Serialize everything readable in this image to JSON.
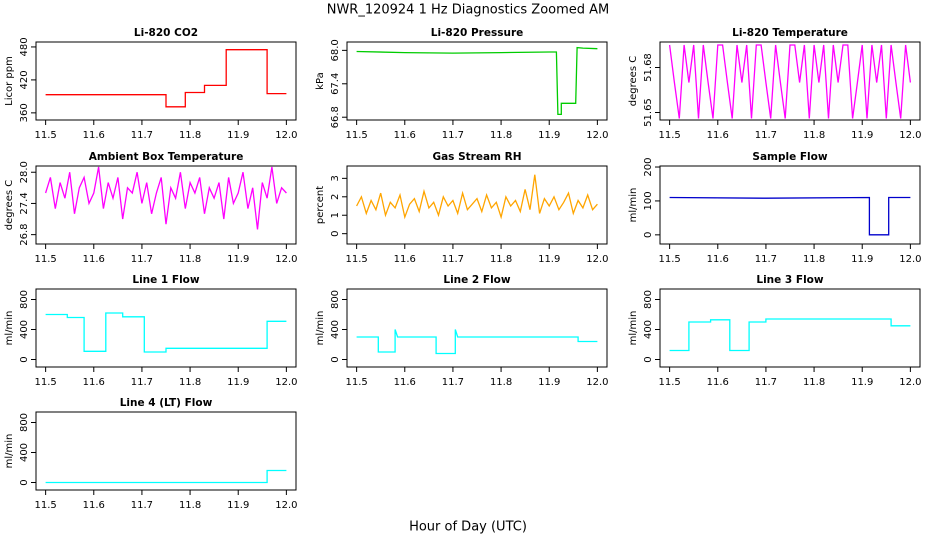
{
  "title": "NWR_120924  1 Hz Diagnostics Zoomed AM",
  "xlabel": "Hour of Day (UTC)",
  "chart_data": [
    {
      "type": "line",
      "title": "Li-820 CO2",
      "ylabel": "Licor ppm",
      "x": [
        11.5,
        11.75,
        11.75,
        11.79,
        11.79,
        11.83,
        11.83,
        11.875,
        11.875,
        11.96,
        11.96,
        12.0
      ],
      "series": [
        {
          "color": "#ff0000",
          "values": [
            393,
            393,
            371,
            371,
            397,
            397,
            410,
            410,
            475,
            475,
            395,
            395
          ]
        }
      ],
      "xlim": [
        11.48,
        12.02
      ],
      "xticks": [
        11.5,
        11.6,
        11.7,
        11.8,
        11.9,
        {
          "value": 12,
          "label": "12.0"
        }
      ],
      "ylim": [
        347,
        489
      ],
      "yticks": [
        360,
        420,
        480
      ]
    },
    {
      "type": "line",
      "title": "Li-820 Pressure",
      "ylabel": "kPa",
      "x": [
        11.5,
        11.6,
        11.7,
        11.8,
        11.9,
        11.915,
        11.918,
        11.925,
        11.925,
        11.955,
        11.958,
        11.97,
        12.0
      ],
      "series": [
        {
          "color": "#00cc00",
          "values": [
            67.98,
            67.96,
            67.95,
            67.96,
            67.97,
            67.97,
            66.85,
            66.85,
            67.05,
            67.05,
            68.05,
            68.04,
            68.03
          ]
        }
      ],
      "xlim": [
        11.48,
        12.02
      ],
      "xticks": [
        11.5,
        11.6,
        11.7,
        11.8,
        11.9,
        {
          "value": 12,
          "label": "12.0"
        }
      ],
      "ylim": [
        66.75,
        68.15
      ],
      "yticks": [
        66.8,
        67.4,
        {
          "value": 68,
          "label": "68.0"
        }
      ]
    },
    {
      "type": "line",
      "title": "Li-820 Temperature",
      "ylabel": "degrees C",
      "x": [
        11.5,
        11.51,
        11.52,
        11.53,
        11.54,
        11.55,
        11.56,
        11.57,
        11.58,
        11.59,
        11.6,
        11.61,
        11.62,
        11.63,
        11.64,
        11.65,
        11.66,
        11.67,
        11.68,
        11.69,
        11.7,
        11.71,
        11.72,
        11.73,
        11.74,
        11.75,
        11.76,
        11.77,
        11.78,
        11.79,
        11.8,
        11.81,
        11.82,
        11.83,
        11.84,
        11.85,
        11.86,
        11.87,
        11.88,
        11.89,
        11.9,
        11.91,
        11.92,
        11.93,
        11.94,
        11.95,
        11.96,
        11.97,
        11.98,
        11.99,
        12.0
      ],
      "series": [
        {
          "color": "#ff00ff",
          "values": [
            51.695,
            51.67,
            51.646,
            51.695,
            51.67,
            51.695,
            51.646,
            51.695,
            51.67,
            51.646,
            51.695,
            51.695,
            51.67,
            51.646,
            51.695,
            51.67,
            51.695,
            51.646,
            51.695,
            51.695,
            51.67,
            51.646,
            51.695,
            51.67,
            51.646,
            51.695,
            51.695,
            51.67,
            51.695,
            51.646,
            51.695,
            51.67,
            51.695,
            51.646,
            51.695,
            51.67,
            51.695,
            51.695,
            51.646,
            51.67,
            51.695,
            51.646,
            51.695,
            51.67,
            51.695,
            51.646,
            51.695,
            51.67,
            51.646,
            51.695,
            51.67
          ]
        }
      ],
      "xlim": [
        11.48,
        12.02
      ],
      "xticks": [
        11.5,
        11.6,
        11.7,
        11.8,
        11.9,
        {
          "value": 12,
          "label": "12.0"
        }
      ],
      "ylim": [
        51.645,
        51.697
      ],
      "yticks": [
        51.65,
        51.68
      ]
    },
    {
      "type": "line",
      "title": "Ambient Box Temperature",
      "ylabel": "degrees C",
      "x": [
        11.5,
        11.51,
        11.52,
        11.53,
        11.54,
        11.55,
        11.56,
        11.57,
        11.58,
        11.59,
        11.6,
        11.61,
        11.62,
        11.63,
        11.64,
        11.65,
        11.66,
        11.67,
        11.68,
        11.69,
        11.7,
        11.71,
        11.72,
        11.73,
        11.74,
        11.75,
        11.76,
        11.77,
        11.78,
        11.79,
        11.8,
        11.81,
        11.82,
        11.83,
        11.84,
        11.85,
        11.86,
        11.87,
        11.88,
        11.89,
        11.9,
        11.91,
        11.92,
        11.93,
        11.94,
        11.95,
        11.96,
        11.97,
        11.98,
        11.99,
        12.0
      ],
      "series": [
        {
          "color": "#ff00ff",
          "values": [
            27.6,
            27.9,
            27.3,
            27.8,
            27.5,
            28.0,
            27.2,
            27.7,
            27.9,
            27.4,
            27.6,
            28.1,
            27.3,
            27.8,
            27.5,
            27.9,
            27.1,
            27.7,
            27.6,
            28.0,
            27.4,
            27.8,
            27.2,
            27.6,
            27.9,
            27.0,
            27.7,
            27.5,
            28.0,
            27.3,
            27.8,
            27.6,
            27.9,
            27.2,
            27.7,
            27.5,
            27.8,
            27.1,
            27.9,
            27.4,
            27.6,
            28.0,
            27.3,
            27.7,
            26.9,
            27.8,
            27.5,
            28.1,
            27.4,
            27.7,
            27.6
          ]
        }
      ],
      "xlim": [
        11.48,
        12.02
      ],
      "xticks": [
        11.5,
        11.6,
        11.7,
        11.8,
        11.9,
        {
          "value": 12,
          "label": "12.0"
        }
      ],
      "ylim": [
        26.62,
        28.12
      ],
      "yticks": [
        26.8,
        27.4,
        {
          "value": 28,
          "label": "28.0"
        }
      ]
    },
    {
      "type": "line",
      "title": "Gas Stream RH",
      "ylabel": "percent",
      "x": [
        11.5,
        11.51,
        11.52,
        11.53,
        11.54,
        11.55,
        11.56,
        11.57,
        11.58,
        11.59,
        11.6,
        11.61,
        11.62,
        11.63,
        11.64,
        11.65,
        11.66,
        11.67,
        11.68,
        11.69,
        11.7,
        11.71,
        11.72,
        11.73,
        11.74,
        11.75,
        11.76,
        11.77,
        11.78,
        11.79,
        11.8,
        11.81,
        11.82,
        11.83,
        11.84,
        11.85,
        11.86,
        11.87,
        11.88,
        11.89,
        11.9,
        11.91,
        11.92,
        11.93,
        11.94,
        11.95,
        11.96,
        11.97,
        11.98,
        11.99,
        12.0
      ],
      "series": [
        {
          "color": "#ffa500",
          "values": [
            1.5,
            2.0,
            1.1,
            1.8,
            1.3,
            2.2,
            1.0,
            1.7,
            1.4,
            2.1,
            0.9,
            1.6,
            1.9,
            1.2,
            2.3,
            1.4,
            1.7,
            1.0,
            2.0,
            1.5,
            1.8,
            1.1,
            2.2,
            1.3,
            1.6,
            1.9,
            1.2,
            2.1,
            1.4,
            1.7,
            0.9,
            2.0,
            1.5,
            1.8,
            1.2,
            2.4,
            1.3,
            3.2,
            1.1,
            1.9,
            1.5,
            2.0,
            1.3,
            1.7,
            2.2,
            1.1,
            1.8,
            1.4,
            2.1,
            1.3,
            1.6
          ]
        }
      ],
      "xlim": [
        11.48,
        12.02
      ],
      "xticks": [
        11.5,
        11.6,
        11.7,
        11.8,
        11.9,
        {
          "value": 12,
          "label": "12.0"
        }
      ],
      "ylim": [
        -0.56,
        3.67
      ],
      "yticks": [
        0,
        1,
        2,
        3
      ]
    },
    {
      "type": "line",
      "title": "Sample Flow",
      "ylabel": "ml/min",
      "x": [
        11.5,
        11.7,
        11.915,
        11.915,
        11.955,
        11.955,
        12.0
      ],
      "series": [
        {
          "color": "#0000cc",
          "values": [
            110,
            108,
            110,
            0,
            0,
            110,
            110
          ]
        }
      ],
      "xlim": [
        11.48,
        12.02
      ],
      "xticks": [
        11.5,
        11.6,
        11.7,
        11.8,
        11.9,
        {
          "value": 12,
          "label": "12.0"
        }
      ],
      "ylim": [
        -27,
        203
      ],
      "yticks": [
        0,
        100,
        200
      ]
    },
    {
      "type": "line",
      "title": "Line 1 Flow",
      "ylabel": "ml/min",
      "x": [
        11.5,
        11.545,
        11.545,
        11.58,
        11.58,
        11.625,
        11.625,
        11.66,
        11.66,
        11.705,
        11.705,
        11.75,
        11.75,
        11.96,
        11.96,
        12.0
      ],
      "series": [
        {
          "color": "#00ffff",
          "values": [
            600,
            600,
            560,
            560,
            110,
            110,
            620,
            620,
            570,
            570,
            100,
            100,
            150,
            150,
            510,
            510
          ]
        }
      ],
      "xlim": [
        11.48,
        12.02
      ],
      "xticks": [
        11.5,
        11.6,
        11.7,
        11.8,
        11.9,
        {
          "value": 12,
          "label": "12.0"
        }
      ],
      "ylim": [
        -100,
        940
      ],
      "yticks": [
        0,
        400,
        800
      ]
    },
    {
      "type": "line",
      "title": "Line 2 Flow",
      "ylabel": "ml/min",
      "x": [
        11.5,
        11.545,
        11.545,
        11.58,
        11.58,
        11.585,
        11.665,
        11.665,
        11.705,
        11.705,
        11.71,
        11.96,
        11.96,
        12.0
      ],
      "series": [
        {
          "color": "#00ffff",
          "values": [
            300,
            300,
            100,
            100,
            400,
            300,
            300,
            80,
            80,
            400,
            300,
            300,
            240,
            240
          ]
        }
      ],
      "xlim": [
        11.48,
        12.02
      ],
      "xticks": [
        11.5,
        11.6,
        11.7,
        11.8,
        11.9,
        {
          "value": 12,
          "label": "12.0"
        }
      ],
      "ylim": [
        -100,
        940
      ],
      "yticks": [
        0,
        400,
        800
      ]
    },
    {
      "type": "line",
      "title": "Line 3 Flow",
      "ylabel": "ml/min",
      "x": [
        11.5,
        11.54,
        11.54,
        11.585,
        11.585,
        11.625,
        11.625,
        11.665,
        11.665,
        11.7,
        11.7,
        11.96,
        11.96,
        12.0
      ],
      "series": [
        {
          "color": "#00ffff",
          "values": [
            120,
            120,
            500,
            500,
            530,
            530,
            120,
            120,
            500,
            500,
            540,
            540,
            450,
            450
          ]
        }
      ],
      "xlim": [
        11.48,
        12.02
      ],
      "xticks": [
        11.5,
        11.6,
        11.7,
        11.8,
        11.9,
        {
          "value": 12,
          "label": "12.0"
        }
      ],
      "ylim": [
        -100,
        940
      ],
      "yticks": [
        0,
        400,
        800
      ]
    },
    {
      "type": "line",
      "title": "Line 4 (LT) Flow",
      "ylabel": "ml/min",
      "x": [
        11.5,
        11.96,
        11.96,
        12.0
      ],
      "series": [
        {
          "color": "#00ffff",
          "values": [
            0,
            0,
            160,
            160
          ]
        }
      ],
      "xlim": [
        11.48,
        12.02
      ],
      "xticks": [
        11.5,
        11.6,
        11.7,
        11.8,
        11.9,
        {
          "value": 12,
          "label": "12.0"
        }
      ],
      "ylim": [
        -100,
        940
      ],
      "yticks": [
        0,
        400,
        800
      ]
    }
  ]
}
